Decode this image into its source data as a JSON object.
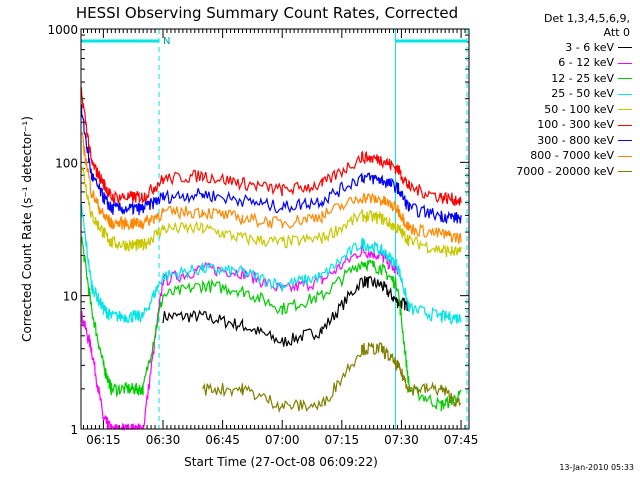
{
  "chart_data": {
    "type": "line",
    "title": "HESSI Observing Summary Count Rates, Corrected",
    "xlabel": "Start Time (27-Oct-08 06:09:22)",
    "ylabel": "Corrected Count Rate (s⁻¹ detector⁻¹)",
    "yscale": "log",
    "ylim": [
      1,
      1000
    ],
    "xlim": [
      "06:09:22",
      "07:47:00"
    ],
    "x_ticks": [
      "06:15",
      "06:30",
      "06:45",
      "07:00",
      "07:15",
      "07:30",
      "07:45"
    ],
    "y_ticks": [
      "1",
      "10",
      "100",
      "1000"
    ],
    "grid": false,
    "legend_position": "right",
    "legend_header": [
      "Det 1,3,4,5,6,9,",
      "Att 0"
    ],
    "time_points": [
      "06:09",
      "06:12",
      "06:15",
      "06:17",
      "06:22",
      "06:25",
      "06:30",
      "06:40",
      "06:50",
      "07:00",
      "07:10",
      "07:20",
      "07:25",
      "07:29",
      "07:32",
      "07:40",
      "07:45"
    ],
    "series": [
      {
        "name": "3 - 6 keV",
        "color": "#000000",
        "values": [
          null,
          null,
          null,
          null,
          null,
          null,
          7,
          7,
          6,
          4.5,
          5.5,
          13,
          12,
          9,
          8.5,
          null,
          null
        ]
      },
      {
        "name": "6 - 12 keV",
        "color": "#ff00ff",
        "values": [
          8,
          4,
          1.2,
          1,
          1,
          1,
          13,
          16,
          15,
          11,
          13,
          22,
          20,
          15,
          null,
          null,
          null
        ]
      },
      {
        "name": "12 - 25 keV",
        "color": "#00cc00",
        "values": [
          35,
          8,
          3,
          2,
          2,
          2,
          10,
          12,
          11,
          8,
          10,
          18,
          16,
          12,
          2,
          1.5,
          1.8
        ]
      },
      {
        "name": "25 - 50 keV",
        "color": "#00e5e5",
        "values": [
          60,
          12,
          8,
          7,
          7,
          7,
          14,
          16,
          15,
          12,
          14,
          25,
          22,
          17,
          8,
          7,
          6.8
        ]
      },
      {
        "name": "50 - 100 keV",
        "color": "#c8c800",
        "values": [
          120,
          40,
          30,
          25,
          24,
          24,
          32,
          32,
          27,
          25,
          27,
          40,
          38,
          32,
          26,
          22,
          21
        ]
      },
      {
        "name": "100 - 300 keV",
        "color": "#ff0000",
        "values": [
          420,
          100,
          70,
          55,
          55,
          55,
          75,
          80,
          70,
          62,
          68,
          110,
          105,
          90,
          65,
          55,
          52
        ]
      },
      {
        "name": "300 - 800 keV",
        "color": "#0000ff",
        "values": [
          300,
          80,
          55,
          45,
          45,
          45,
          55,
          58,
          52,
          46,
          52,
          78,
          74,
          65,
          45,
          40,
          38
        ]
      },
      {
        "name": "800 - 7000 keV",
        "color": "#ff8800",
        "values": [
          200,
          60,
          40,
          35,
          35,
          35,
          42,
          43,
          38,
          35,
          40,
          55,
          52,
          45,
          32,
          29,
          27
        ]
      },
      {
        "name": "7000 - 20000 keV",
        "color": "#808000",
        "values": [
          null,
          null,
          null,
          null,
          null,
          null,
          null,
          2,
          2,
          1.5,
          1.5,
          4,
          4,
          3,
          2,
          2,
          1.5
        ]
      }
    ],
    "annotations": [
      "N"
    ],
    "attenuator_bars": [
      [
        "06:09:22",
        "06:29:00"
      ],
      [
        "07:28:30",
        "07:46:30"
      ]
    ],
    "vertical_markers": [
      "06:29:00",
      "07:28:30",
      "07:46:30"
    ]
  },
  "footer": {
    "timestamp": "13-Jan-2010 05:33"
  }
}
